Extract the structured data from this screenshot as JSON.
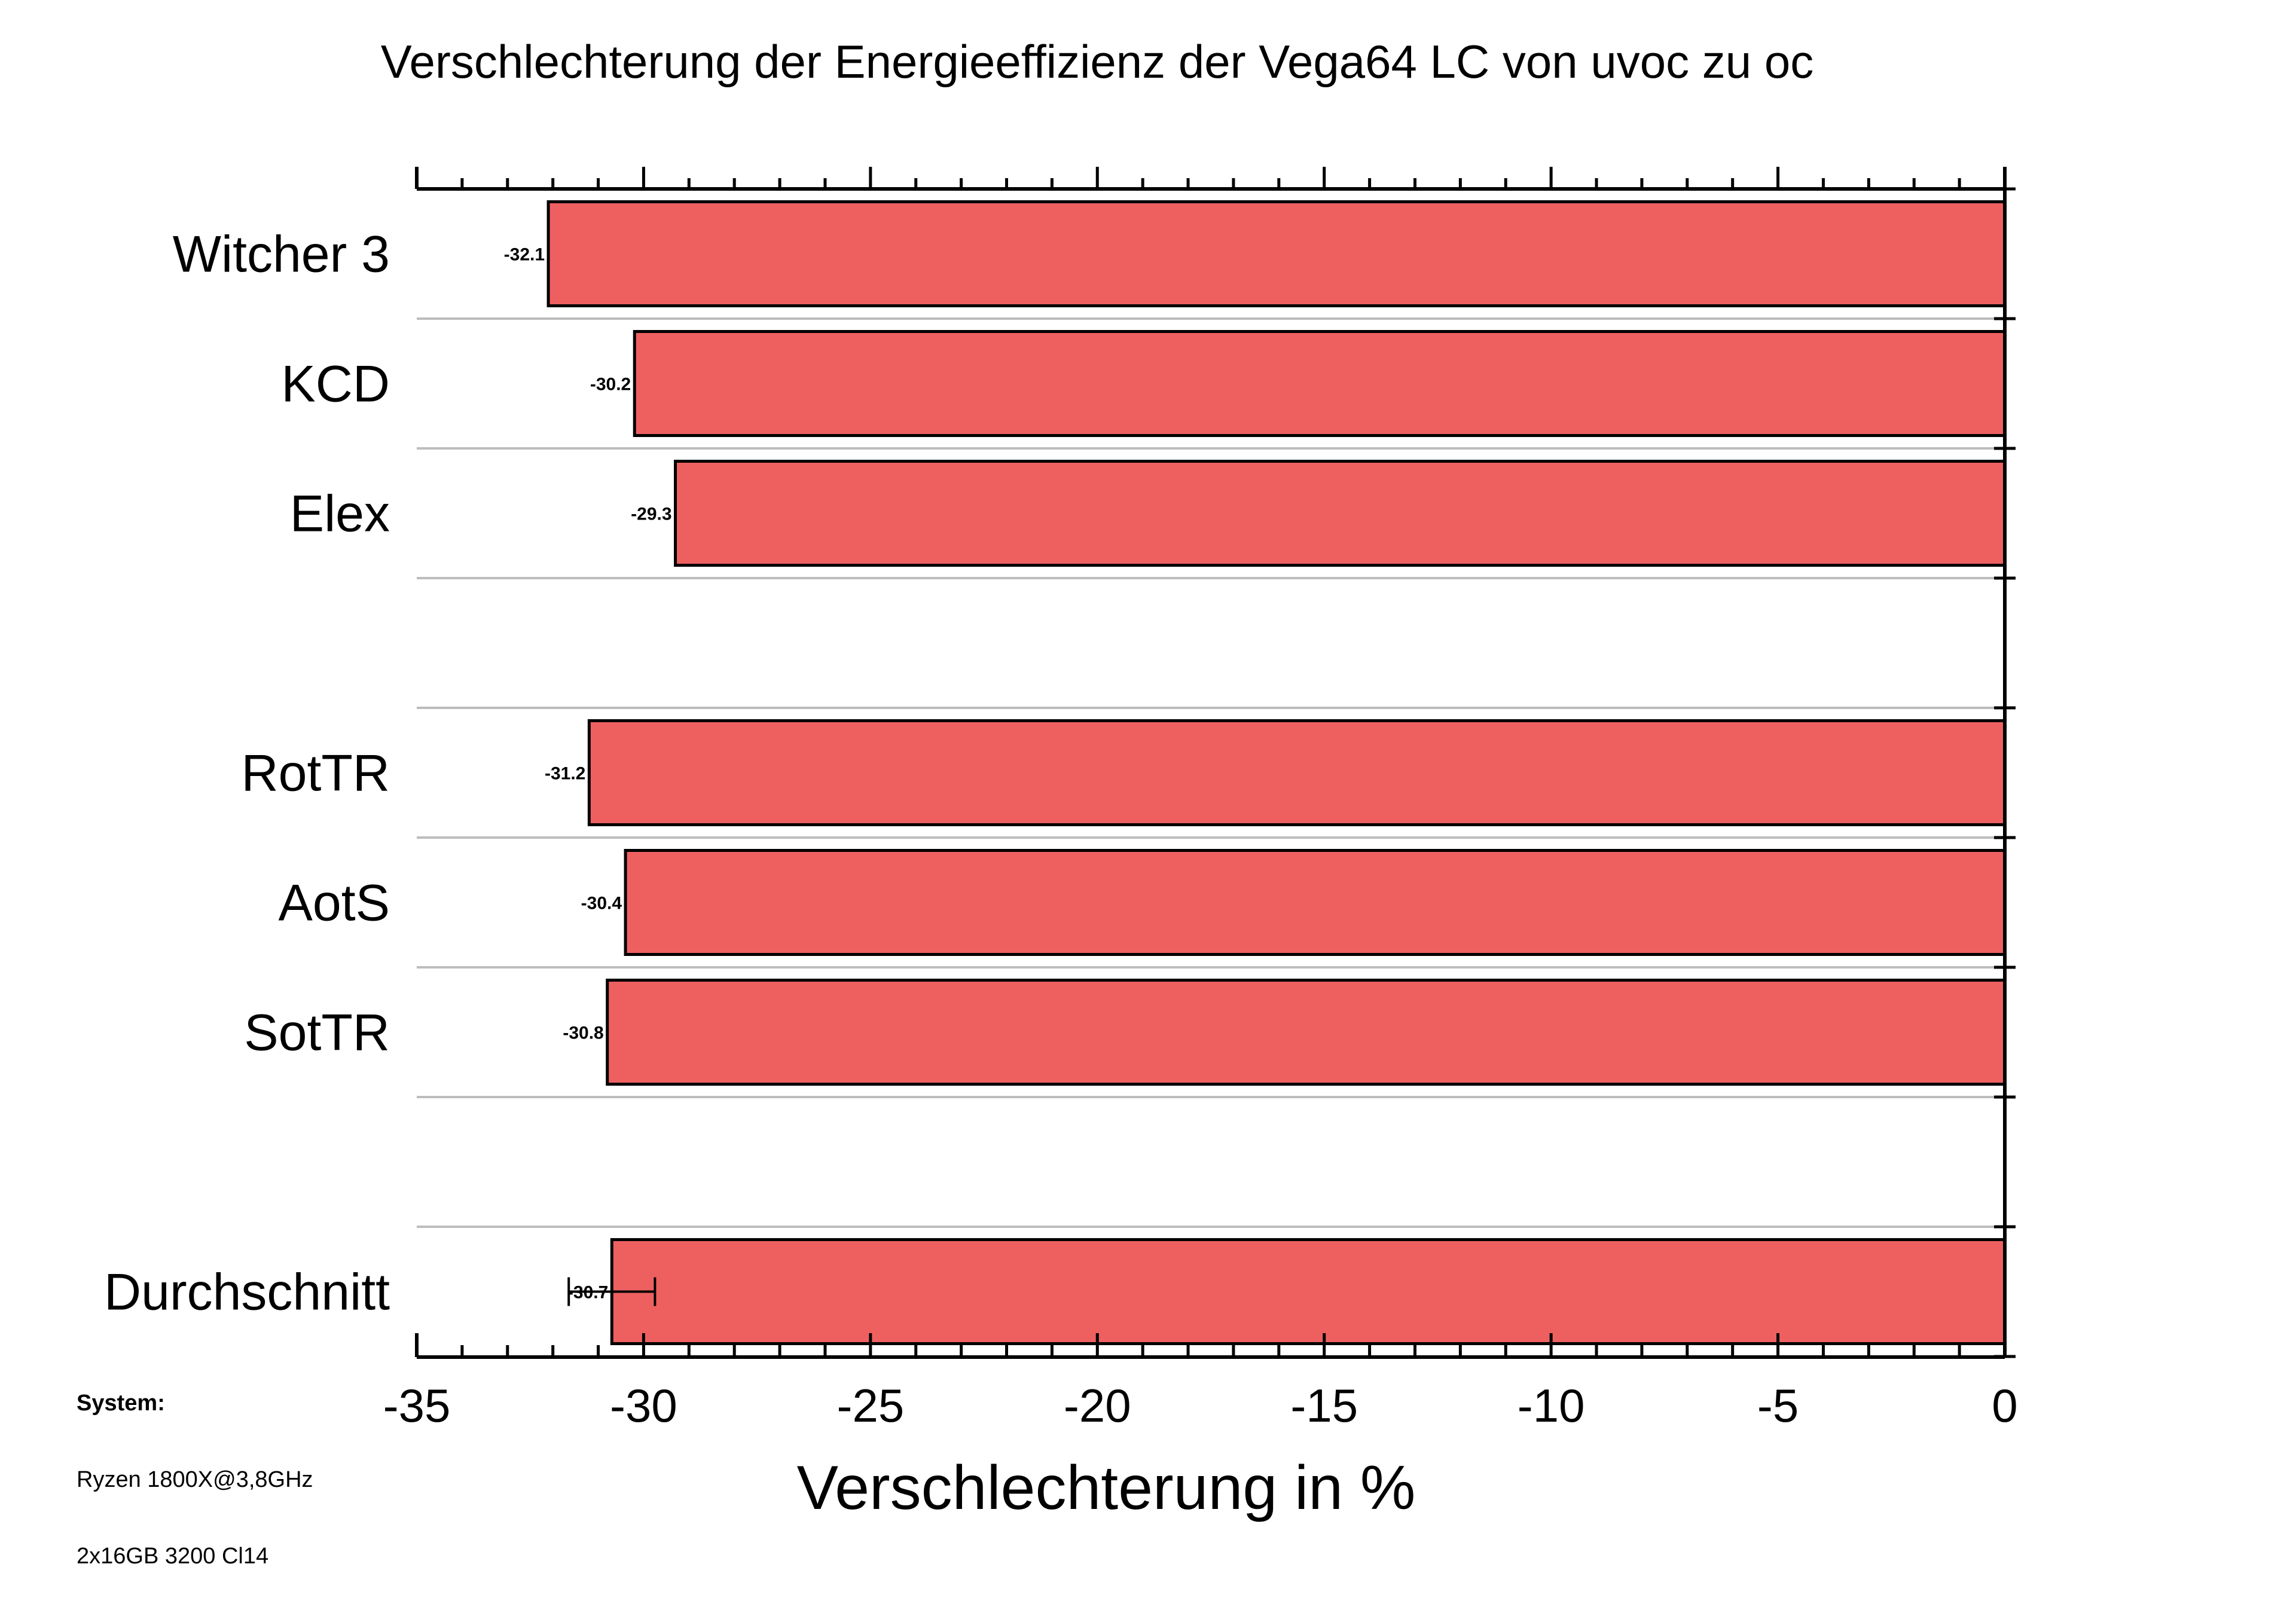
{
  "chart_data": {
    "type": "bar",
    "orientation": "horizontal",
    "title": "Verschlechterung der Energieeffizienz der Vega64 LC von uvoc zu oc",
    "xlabel": "Verschlechterung in %",
    "ylabel": "",
    "xlim": [
      -35,
      0
    ],
    "xticks": [
      -35,
      -30,
      -25,
      -20,
      -15,
      -10,
      -5,
      0
    ],
    "xtick_labels": [
      "-35",
      "-30",
      "-25",
      "-20",
      "-15",
      "-10",
      "-5",
      "0"
    ],
    "categories": [
      "Witcher 3",
      "KCD",
      "Elex",
      "",
      "RotTR",
      "AotS",
      "SotTR",
      "",
      "Durchschnitt"
    ],
    "values": [
      -32.1,
      -30.2,
      -29.3,
      null,
      -31.2,
      -30.4,
      -30.8,
      null,
      -30.7
    ],
    "data_labels": [
      "-32.1",
      "-30.2",
      "-29.3",
      "",
      "-31.2",
      "-30.4",
      "-30.8",
      "",
      "-30.7"
    ],
    "error_bars": [
      null,
      null,
      null,
      null,
      null,
      null,
      null,
      null,
      0.95
    ],
    "bar_color": "#ee6060",
    "grid": "horizontal separators",
    "legend": "none"
  },
  "system_info": {
    "heading": "System:",
    "lines": [
      "Ryzen 1800X@3,8GHz",
      "2x16GB 3200 Cl14"
    ]
  }
}
